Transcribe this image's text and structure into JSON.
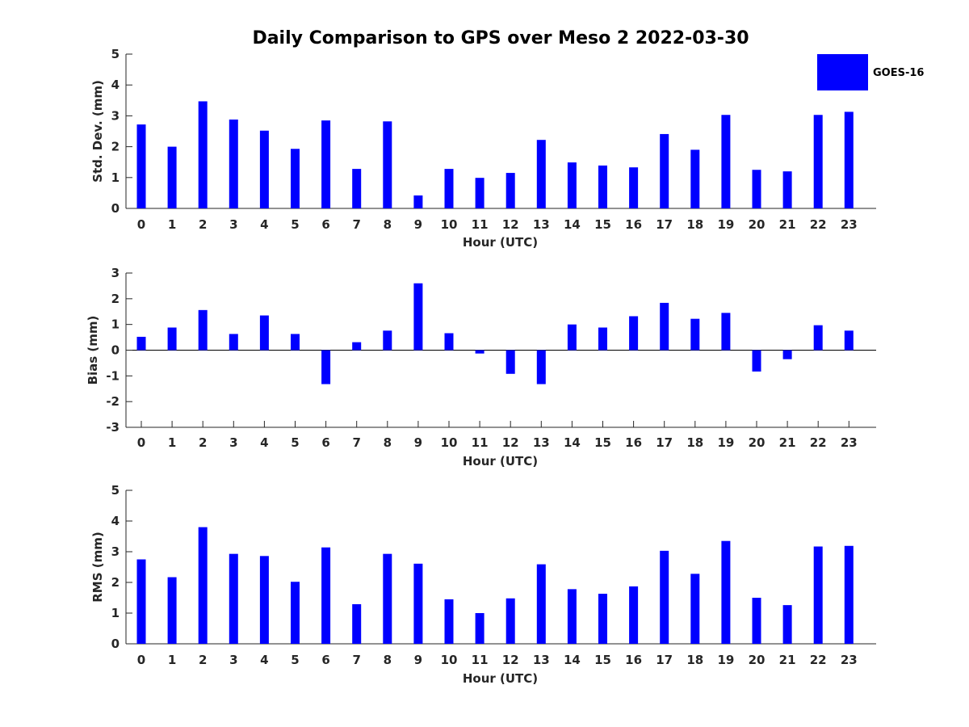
{
  "title": "Daily Comparison to GPS over Meso 2 2022-03-30",
  "colors": {
    "bar": "#0000ff",
    "axis": "#262626"
  },
  "legend": {
    "label": "GOES-16",
    "placement": "top-right"
  },
  "chart_data": [
    {
      "type": "bar",
      "categories": [
        "0",
        "1",
        "2",
        "3",
        "4",
        "5",
        "6",
        "7",
        "8",
        "9",
        "10",
        "11",
        "12",
        "13",
        "14",
        "15",
        "16",
        "17",
        "18",
        "19",
        "20",
        "21",
        "22",
        "23"
      ],
      "series": [
        {
          "name": "GOES-16",
          "values": [
            2.72,
            2.0,
            3.47,
            2.88,
            2.52,
            1.93,
            2.85,
            1.28,
            2.82,
            0.42,
            1.28,
            0.99,
            1.15,
            2.22,
            1.49,
            1.39,
            1.33,
            2.41,
            1.9,
            3.03,
            1.25,
            1.2,
            3.03,
            3.13
          ]
        }
      ],
      "xlabel": "Hour (UTC)",
      "ylabel": "Std. Dev. (mm)",
      "ylim": [
        0,
        5
      ],
      "yticks": [
        "0",
        "1",
        "2",
        "3",
        "4",
        "5"
      ],
      "grid": false
    },
    {
      "type": "bar",
      "categories": [
        "0",
        "1",
        "2",
        "3",
        "4",
        "5",
        "6",
        "7",
        "8",
        "9",
        "10",
        "11",
        "12",
        "13",
        "14",
        "15",
        "16",
        "17",
        "18",
        "19",
        "20",
        "21",
        "22",
        "23"
      ],
      "series": [
        {
          "name": "GOES-16",
          "values": [
            0.52,
            0.88,
            1.56,
            0.63,
            1.35,
            0.63,
            -1.32,
            0.31,
            0.76,
            2.6,
            0.66,
            -0.13,
            -0.92,
            -1.32,
            1.0,
            0.88,
            1.32,
            1.84,
            1.22,
            1.45,
            -0.83,
            -0.35,
            0.97,
            0.76
          ]
        }
      ],
      "xlabel": "Hour (UTC)",
      "ylabel": "Bias (mm)",
      "ylim": [
        -3,
        3
      ],
      "yticks": [
        "-3",
        "-2",
        "-1",
        "0",
        "1",
        "2",
        "3"
      ],
      "grid": false
    },
    {
      "type": "bar",
      "categories": [
        "0",
        "1",
        "2",
        "3",
        "4",
        "5",
        "6",
        "7",
        "8",
        "9",
        "10",
        "11",
        "12",
        "13",
        "14",
        "15",
        "16",
        "17",
        "18",
        "19",
        "20",
        "21",
        "22",
        "23"
      ],
      "series": [
        {
          "name": "GOES-16",
          "values": [
            2.75,
            2.17,
            3.8,
            2.93,
            2.86,
            2.02,
            3.14,
            1.29,
            2.93,
            2.61,
            1.45,
            1.0,
            1.48,
            2.59,
            1.78,
            1.63,
            1.87,
            3.03,
            2.28,
            3.35,
            1.5,
            1.26,
            3.17,
            3.19
          ]
        }
      ],
      "xlabel": "Hour (UTC)",
      "ylabel": "RMS (mm)",
      "ylim": [
        0,
        5
      ],
      "yticks": [
        "0",
        "1",
        "2",
        "3",
        "4",
        "5"
      ],
      "grid": false
    }
  ]
}
